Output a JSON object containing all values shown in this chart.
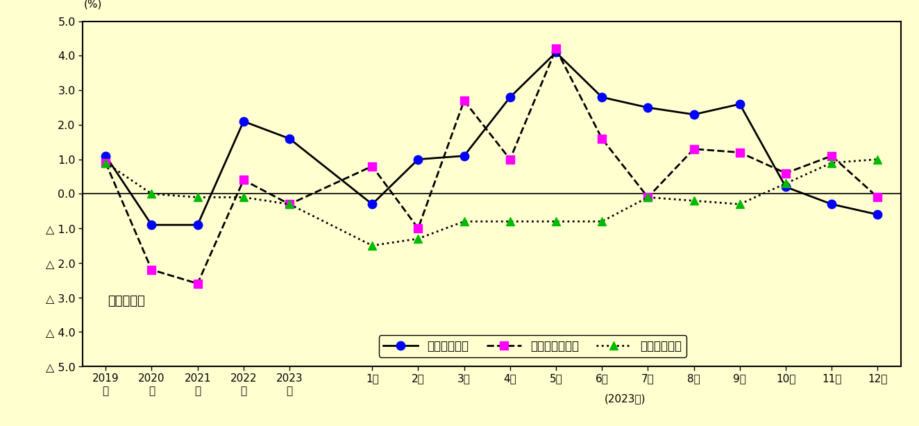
{
  "background_color": "#FFFFD0",
  "annotation": "調査産業計",
  "ylabel": "(%)",
  "ylim": [
    -5.0,
    5.0
  ],
  "yticks": [
    5.0,
    4.0,
    3.0,
    2.0,
    1.0,
    0.0,
    -1.0,
    -2.0,
    -3.0,
    -4.0,
    -5.0
  ],
  "ytick_labels": [
    "5.0",
    "4.0",
    "3.0",
    "2.0",
    "1.0",
    "0.0",
    "△ 1.0",
    "△ 2.0",
    "△ 3.0",
    "△ 4.0",
    "△ 5.0"
  ],
  "x_annual_labels": [
    "2019\n年",
    "2020\n年",
    "2021\n年",
    "2022\n年",
    "2023\n年"
  ],
  "x_monthly_labels": [
    "1月",
    "2月",
    "3月",
    "4月",
    "5月",
    "6月",
    "7月",
    "8月",
    "9月",
    "10月",
    "11月",
    "12月"
  ],
  "x_monthly_sublabel": "(2023年)",
  "series": [
    {
      "key": "genkin",
      "label": "現金給与総額",
      "line_color": "#000000",
      "marker_color": "#0000FF",
      "linestyle": "-",
      "linewidth": 2.0,
      "marker": "o",
      "markersize": 9,
      "values_y": [
        1.1,
        -0.9,
        -0.9,
        2.1,
        1.6,
        -0.3,
        1.0,
        1.1,
        2.8,
        4.1,
        2.8,
        2.5,
        2.3,
        2.6,
        0.2,
        -0.3,
        -0.6
      ]
    },
    {
      "key": "sojitsu",
      "label": "総実労働時間数",
      "line_color": "#000000",
      "marker_color": "#FF00FF",
      "linestyle": "--",
      "linewidth": 2.0,
      "marker": "s",
      "markersize": 9,
      "values_y": [
        0.9,
        -2.2,
        -2.6,
        0.4,
        -0.3,
        0.8,
        -1.0,
        2.7,
        1.0,
        4.2,
        1.6,
        -0.1,
        1.3,
        1.2,
        0.6,
        1.1,
        -0.1
      ]
    },
    {
      "key": "joko",
      "label": "常用労働者数",
      "line_color": "#000000",
      "marker_color": "#00BB00",
      "linestyle": ":",
      "linewidth": 2.0,
      "marker": "^",
      "markersize": 9,
      "values_y": [
        0.9,
        0.0,
        -0.1,
        -0.1,
        -0.3,
        -1.5,
        -1.3,
        -0.8,
        -0.8,
        -0.8,
        -0.8,
        -0.1,
        -0.2,
        -0.3,
        0.3,
        0.9,
        1.0
      ]
    }
  ],
  "annual_x": [
    0,
    1,
    2,
    3,
    4
  ],
  "monthly_x_start": 5.8,
  "monthly_x_step": 1.0,
  "xlim": [
    -0.5,
    17.3
  ]
}
